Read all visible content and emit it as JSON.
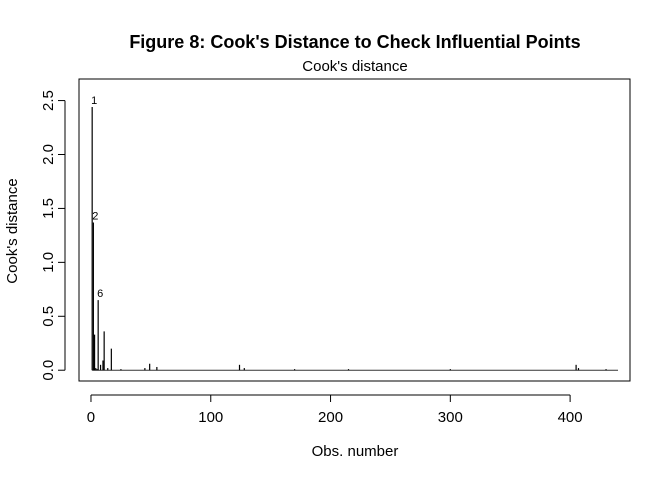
{
  "chart_data": {
    "type": "bar",
    "title": "Figure 8: Cook's Distance to Check Influential Points",
    "subtitle": "Cook's distance",
    "xlabel": "Obs. number",
    "ylabel": "Cook's distance",
    "xlim": [
      -10,
      450
    ],
    "ylim": [
      -0.1,
      2.7
    ],
    "xticks": [
      "0",
      "100",
      "200",
      "300",
      "400"
    ],
    "yticks": [
      "0.0",
      "0.5",
      "1.0",
      "1.5",
      "2.0",
      "2.5"
    ],
    "grid": false,
    "x": [
      1,
      2,
      3,
      4,
      5,
      6,
      8,
      10,
      11,
      14,
      17,
      25,
      45,
      49,
      55,
      124,
      128,
      170,
      215,
      300,
      405,
      407,
      430
    ],
    "values": [
      2.44,
      1.37,
      0.33,
      0.02,
      0.01,
      0.65,
      0.05,
      0.09,
      0.36,
      0.02,
      0.2,
      0.01,
      0.02,
      0.06,
      0.03,
      0.05,
      0.02,
      0.01,
      0.01,
      0.01,
      0.05,
      0.02,
      0.01
    ],
    "labels": [
      {
        "x": 1,
        "y": 2.44,
        "text": "1"
      },
      {
        "x": 2,
        "y": 1.37,
        "text": "2"
      },
      {
        "x": 6,
        "y": 0.65,
        "text": "6"
      }
    ]
  }
}
